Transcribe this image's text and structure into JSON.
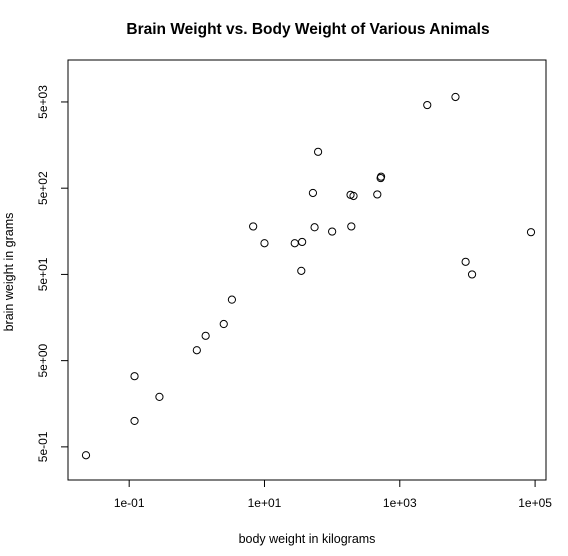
{
  "chart_data": {
    "type": "scatter",
    "title": "Brain Weight vs. Body Weight of Various Animals",
    "xlabel": "body weight in kilograms",
    "ylabel": "brain weight in grams",
    "x_scale": "log",
    "y_scale": "log",
    "xlim": [
      0.023,
      87000
    ],
    "ylim": [
      0.3,
      10000
    ],
    "x_ticks": [
      {
        "value": 0.1,
        "label": "1e-01"
      },
      {
        "value": 10,
        "label": "1e+01"
      },
      {
        "value": 1000,
        "label": "1e+03"
      },
      {
        "value": 100000,
        "label": "1e+05"
      }
    ],
    "y_ticks": [
      {
        "value": 0.5,
        "label": "5e-01"
      },
      {
        "value": 5,
        "label": "5e+00"
      },
      {
        "value": 50,
        "label": "5e+01"
      },
      {
        "value": 500,
        "label": "5e+02"
      },
      {
        "value": 5000,
        "label": "5e+03"
      }
    ],
    "grid": false,
    "points": [
      {
        "x": 0.023,
        "y": 0.4
      },
      {
        "x": 0.12,
        "y": 1.0
      },
      {
        "x": 0.12,
        "y": 3.3
      },
      {
        "x": 0.28,
        "y": 1.9
      },
      {
        "x": 1.0,
        "y": 6.6
      },
      {
        "x": 1.35,
        "y": 9.7
      },
      {
        "x": 2.5,
        "y": 13.3
      },
      {
        "x": 3.3,
        "y": 25.5
      },
      {
        "x": 6.8,
        "y": 180
      },
      {
        "x": 10,
        "y": 115
      },
      {
        "x": 28,
        "y": 115
      },
      {
        "x": 36,
        "y": 119
      },
      {
        "x": 35,
        "y": 55
      },
      {
        "x": 52,
        "y": 440
      },
      {
        "x": 55,
        "y": 176
      },
      {
        "x": 62,
        "y": 1320
      },
      {
        "x": 100,
        "y": 157
      },
      {
        "x": 187,
        "y": 419
      },
      {
        "x": 192,
        "y": 180
      },
      {
        "x": 207,
        "y": 406
      },
      {
        "x": 465,
        "y": 423
      },
      {
        "x": 521,
        "y": 655
      },
      {
        "x": 529,
        "y": 680
      },
      {
        "x": 2547,
        "y": 4603
      },
      {
        "x": 6654,
        "y": 5712
      },
      {
        "x": 9400,
        "y": 70
      },
      {
        "x": 11700,
        "y": 50
      },
      {
        "x": 87000,
        "y": 154.5
      }
    ]
  }
}
